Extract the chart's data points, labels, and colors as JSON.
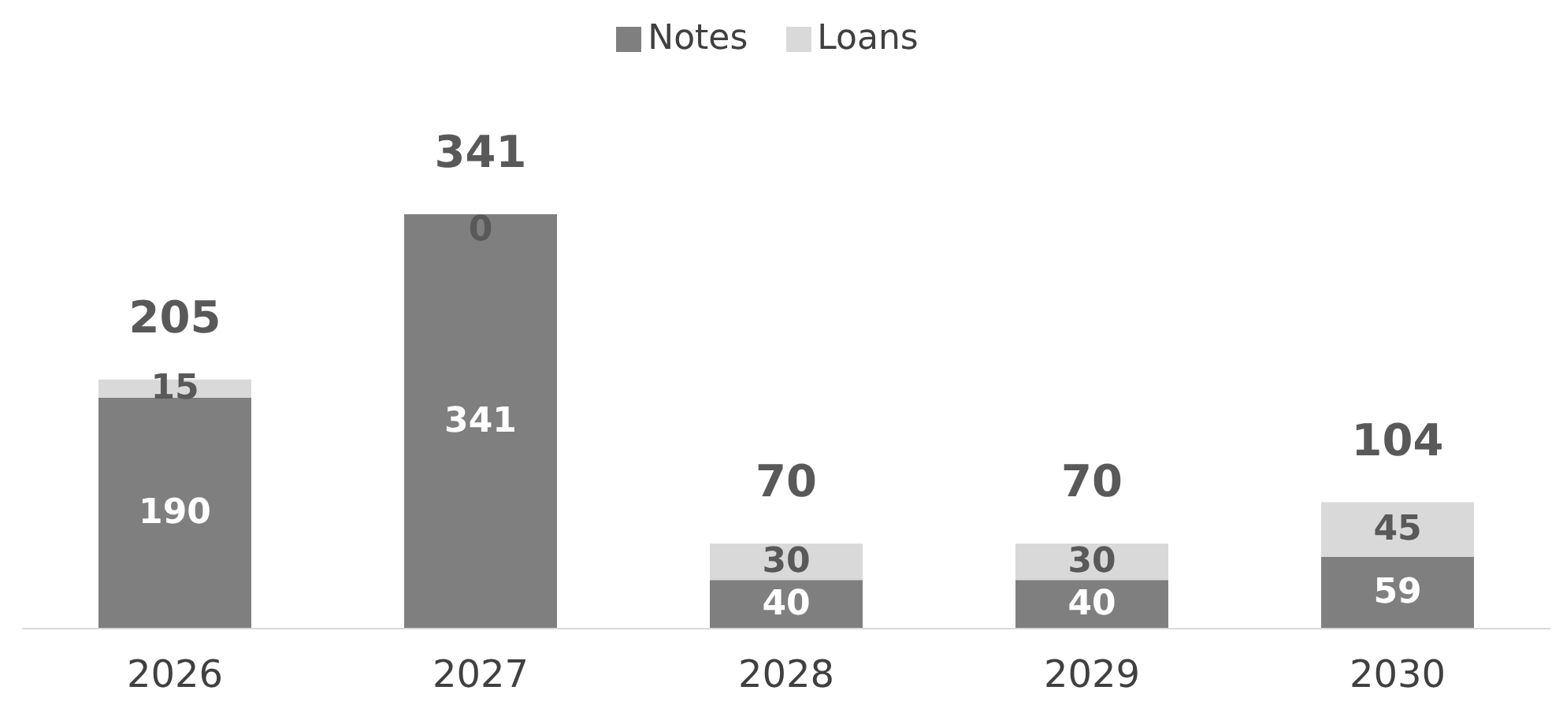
{
  "chart_data": {
    "type": "bar",
    "stacked": true,
    "categories": [
      "2026",
      "2027",
      "2028",
      "2029",
      "2030"
    ],
    "series": [
      {
        "name": "Notes",
        "color": "#7f7f7f",
        "values": [
          190,
          341,
          40,
          40,
          59
        ]
      },
      {
        "name": "Loans",
        "color": "#d9d9d9",
        "values": [
          15,
          0,
          30,
          30,
          45
        ]
      }
    ],
    "data_labels": true,
    "totals": [
      "205",
      "341",
      "70",
      "70",
      "104"
    ],
    "legend": "top",
    "grid": false
  }
}
